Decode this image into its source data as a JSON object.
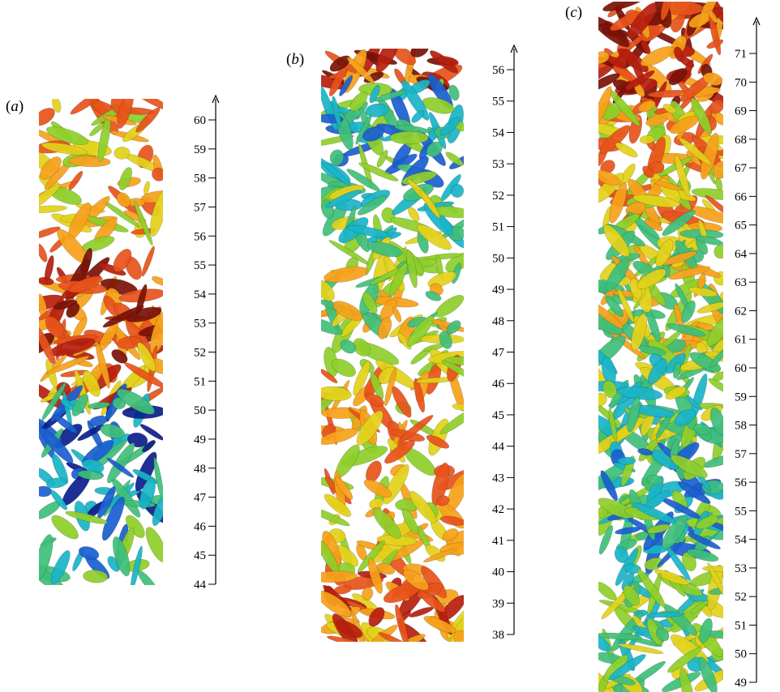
{
  "panels": [
    {
      "id": "a",
      "label": "a",
      "min": 44,
      "max": 60,
      "ticks": [
        44,
        45,
        46,
        47,
        48,
        49,
        50,
        51,
        52,
        53,
        54,
        55,
        56,
        57,
        58,
        59,
        60
      ]
    },
    {
      "id": "b",
      "label": "b",
      "min": 38,
      "max": 56,
      "ticks": [
        38,
        39,
        40,
        41,
        42,
        43,
        44,
        45,
        46,
        47,
        48,
        49,
        50,
        51,
        52,
        53,
        54,
        55,
        56
      ]
    },
    {
      "id": "c",
      "label": "c",
      "min": 49,
      "max": 71,
      "ticks": [
        49,
        50,
        51,
        52,
        53,
        54,
        55,
        56,
        57,
        58,
        59,
        60,
        61,
        62,
        63,
        64,
        65,
        66,
        67,
        68,
        69,
        70,
        71
      ]
    }
  ],
  "colors": {
    "palette": [
      "#0b1f8a",
      "#1a5fd0",
      "#19b5c8",
      "#3fbf7a",
      "#8fcf2a",
      "#e3d21a",
      "#f7a11a",
      "#e8531b",
      "#b71f0f",
      "#7a1208"
    ]
  }
}
